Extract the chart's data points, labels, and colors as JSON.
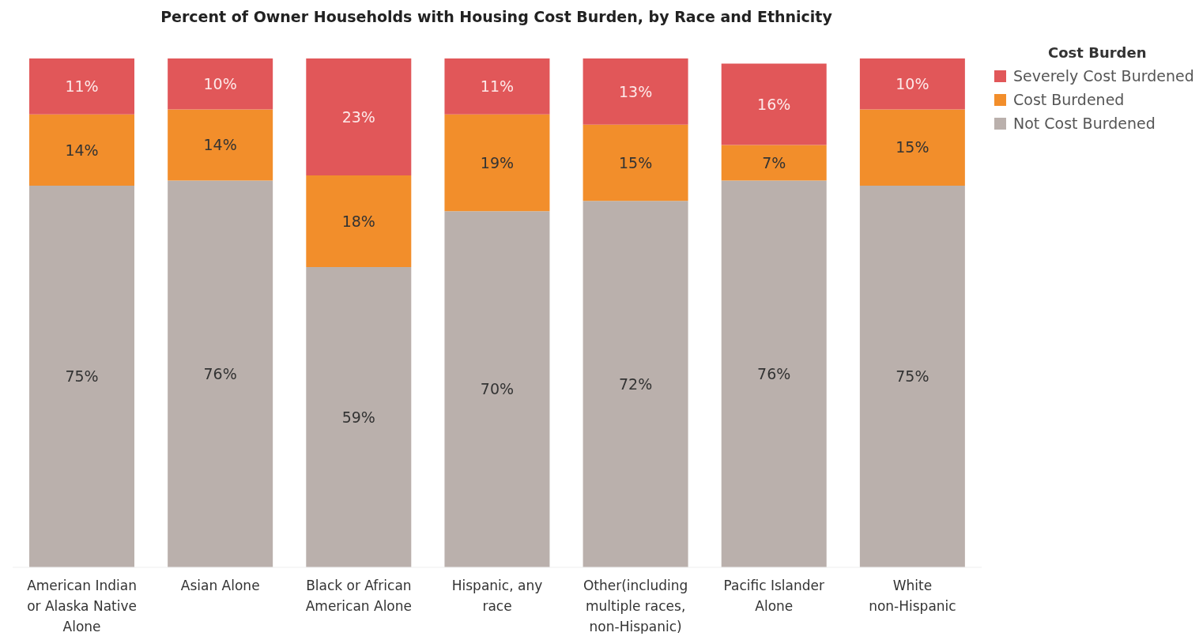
{
  "chart_data": {
    "type": "bar",
    "title": "Percent of Owner Households with Housing Cost Burden, by Race and Ethnicity",
    "legend_title": "Cost Burden",
    "categories": [
      "American Indian or Alaska Native Alone",
      "Asian Alone",
      "Black or African American Alone",
      "Hispanic, any race",
      "Other(including multiple races, non-Hispanic)",
      "Pacific Islander Alone",
      "White non-Hispanic"
    ],
    "series": [
      {
        "name": "Not Cost Burdened",
        "color": "#bab0ac",
        "values": [
          75,
          76,
          59,
          70,
          72,
          76,
          75
        ],
        "value_labels": [
          "75%",
          "76%",
          "59%",
          "70%",
          "72%",
          "76%",
          "75%"
        ]
      },
      {
        "name": "Cost Burdened",
        "color": "#f28e2b",
        "values": [
          14,
          14,
          18,
          19,
          15,
          7,
          15
        ],
        "value_labels": [
          "14%",
          "14%",
          "18%",
          "19%",
          "15%",
          "7%",
          "15%"
        ]
      },
      {
        "name": "Severely Cost Burdened",
        "color": "#e15759",
        "values": [
          11,
          10,
          23,
          11,
          13,
          16,
          10
        ],
        "value_labels": [
          "11%",
          "10%",
          "23%",
          "11%",
          "13%",
          "16%",
          "10%"
        ]
      }
    ],
    "stacked": true,
    "legend": "top right",
    "tick_labels": "x"
  }
}
